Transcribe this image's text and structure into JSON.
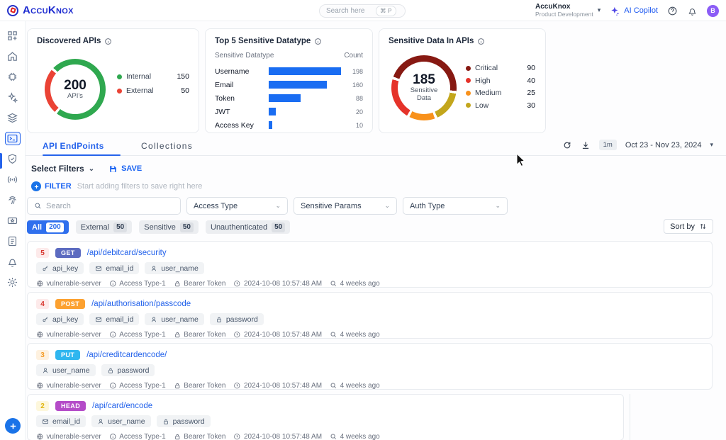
{
  "header": {
    "logo_text": "AccuKnox",
    "search_placeholder": "Search here",
    "search_shortcut": "⌘ P",
    "org_name": "AccuKnox",
    "org_subtitle": "Product Development",
    "ai_copilot_label": "AI Copilot",
    "avatar_initial": "B"
  },
  "sidebar": {
    "items": [
      "apps",
      "home",
      "chip-scan",
      "ai-sparkles",
      "layers",
      "api-inventory",
      "shield-check",
      "broadcast",
      "fingerprint",
      "ticket",
      "report",
      "notifications",
      "settings"
    ],
    "active_item": "api-inventory"
  },
  "cards": {
    "discovered": {
      "title": "Discovered APIs",
      "center_value": "200",
      "center_label": "API's",
      "legend": [
        {
          "label": "Internal",
          "value": "150",
          "color": "#2fa84f"
        },
        {
          "label": "External",
          "value": "50",
          "color": "#ea4335"
        }
      ]
    },
    "top5": {
      "title": "Top 5 Sensitive Datatype",
      "header_label": "Sensitive Datatype",
      "header_count": "Count",
      "bar_color": "#1a6df2",
      "rows": [
        {
          "label": "Username",
          "value": 198
        },
        {
          "label": "Email",
          "value": 160
        },
        {
          "label": "Token",
          "value": 88
        },
        {
          "label": "JWT",
          "value": 20
        },
        {
          "label": "Access Key",
          "value": 10
        }
      ]
    },
    "sensitive": {
      "title": "Sensitive Data In APIs",
      "center_value": "185",
      "center_label": "Sensitive Data",
      "legend": [
        {
          "label": "Critical",
          "value": "90",
          "color": "#871912"
        },
        {
          "label": "High",
          "value": "40",
          "color": "#e5332a"
        },
        {
          "label": "Medium",
          "value": "25",
          "color": "#f8911b"
        },
        {
          "label": "Low",
          "value": "30",
          "color": "#c3a61c"
        }
      ]
    }
  },
  "chart_data": [
    {
      "type": "pie",
      "title": "Discovered APIs",
      "labels": [
        "Internal",
        "External"
      ],
      "values": [
        150,
        50
      ],
      "colors": [
        "#2fa84f",
        "#ea4335"
      ],
      "center_text": "200 API's",
      "legend_position": "right"
    },
    {
      "type": "bar",
      "title": "Top 5 Sensitive Datatype",
      "orientation": "horizontal",
      "categories": [
        "Username",
        "Email",
        "Token",
        "JWT",
        "Access Key"
      ],
      "values": [
        198,
        160,
        88,
        20,
        10
      ],
      "xlabel": "Count",
      "color": "#1a6df2"
    },
    {
      "type": "pie",
      "title": "Sensitive Data In APIs",
      "labels": [
        "Critical",
        "High",
        "Medium",
        "Low"
      ],
      "values": [
        90,
        40,
        25,
        30
      ],
      "colors": [
        "#871912",
        "#e5332a",
        "#f8911b",
        "#c3a61c"
      ],
      "center_text": "185 Sensitive Data",
      "legend_position": "right"
    }
  ],
  "tabs": {
    "endpoints_label": "API EndPoints",
    "collections_label": "Collections",
    "time_badge": "1m",
    "date_range": "Oct 23 - Nov 23, 2024"
  },
  "filters": {
    "select_label": "Select Filters",
    "save_label": "SAVE",
    "filter_label": "FILTER",
    "filter_hint": "Start adding filters to save right here",
    "search_placeholder": "Search",
    "dropdown_access": "Access Type",
    "dropdown_params": "Sensitive Params",
    "dropdown_auth": "Auth Type",
    "sort_label": "Sort by",
    "chips": [
      {
        "label": "All",
        "count": "200",
        "active": true
      },
      {
        "label": "External",
        "count": "50",
        "active": false
      },
      {
        "label": "Sensitive",
        "count": "50",
        "active": false
      },
      {
        "label": "Unauthenticated",
        "count": "50",
        "active": false
      }
    ]
  },
  "endpoints": [
    {
      "rank": "5",
      "rank_color": "#d7372f",
      "rank_bg": "#fdeaea",
      "method": "GET",
      "method_color": "#5c6bc0",
      "path": "/api/debitcard/security",
      "params": [
        {
          "icon": "key",
          "label": "api_key"
        },
        {
          "icon": "mail",
          "label": "email_id"
        },
        {
          "icon": "user",
          "label": "user_name"
        }
      ],
      "meta": {
        "server": "vulnerable-server",
        "access": "Access Type-1",
        "auth": "Bearer Token",
        "time": "2024-10-08 10:57:48 AM",
        "ago": "4 weeks ago"
      }
    },
    {
      "rank": "4",
      "rank_color": "#d7372f",
      "rank_bg": "#fdeaea",
      "method": "POST",
      "method_color": "#fca130",
      "path": "/api/authorisation/passcode",
      "params": [
        {
          "icon": "key",
          "label": "api_key"
        },
        {
          "icon": "mail",
          "label": "email_id"
        },
        {
          "icon": "user",
          "label": "user_name"
        },
        {
          "icon": "lock",
          "label": "password"
        }
      ],
      "meta": {
        "server": "vulnerable-server",
        "access": "Access Type-1",
        "auth": "Bearer Token",
        "time": "2024-10-08 10:57:48 AM",
        "ago": "4 weeks ago"
      }
    },
    {
      "rank": "3",
      "rank_color": "#f59a23",
      "rank_bg": "#fef1df",
      "method": "PUT",
      "method_color": "#2fb6ef",
      "path": "/api/creditcardencode/",
      "params": [
        {
          "icon": "user",
          "label": "user_name"
        },
        {
          "icon": "lock",
          "label": "password"
        }
      ],
      "meta": {
        "server": "vulnerable-server",
        "access": "Access Type-1",
        "auth": "Bearer Token",
        "time": "2024-10-08 10:57:48 AM",
        "ago": "4 weeks ago"
      }
    },
    {
      "rank": "2",
      "rank_color": "#e0b50f",
      "rank_bg": "#fdf7dc",
      "method": "HEAD",
      "method_color": "#b44bc8",
      "path": "/api/card/encode",
      "params": [
        {
          "icon": "mail",
          "label": "email_id"
        },
        {
          "icon": "user",
          "label": "user_name"
        },
        {
          "icon": "lock",
          "label": "password"
        }
      ],
      "meta": {
        "server": "vulnerable-server",
        "access": "Access Type-1",
        "auth": "Bearer Token",
        "time": "2024-10-08 10:57:48 AM",
        "ago": "4 weeks ago"
      }
    }
  ]
}
